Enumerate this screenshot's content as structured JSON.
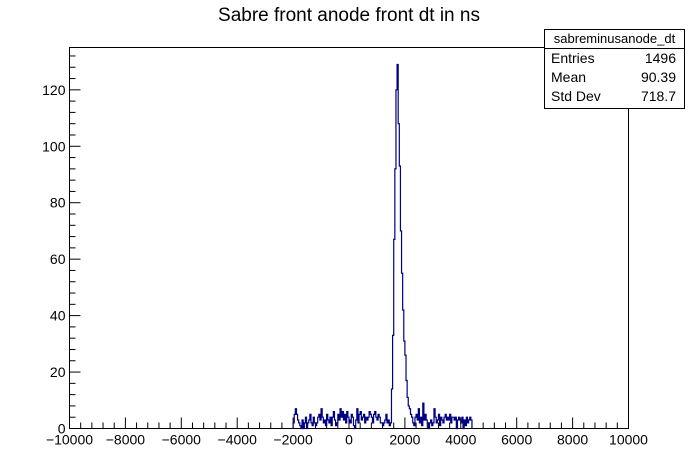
{
  "chart_data": {
    "type": "histogram",
    "title": "Sabre front anode front dt in ns",
    "xlabel": "",
    "ylabel": "",
    "xlim": [
      -10000,
      10000
    ],
    "ylim": [
      0,
      135
    ],
    "x_ticks": [
      -10000,
      -8000,
      -6000,
      -4000,
      -2000,
      0,
      2000,
      4000,
      6000,
      8000,
      10000
    ],
    "x_tick_labels": [
      "−10000",
      "−8000",
      "−6000",
      "−4000",
      "−2000",
      "0",
      "2000",
      "4000",
      "6000",
      "8000",
      "10000"
    ],
    "y_ticks": [
      0,
      20,
      40,
      60,
      80,
      100,
      120
    ],
    "y_tick_labels": [
      "0",
      "20",
      "40",
      "60",
      "80",
      "100",
      "120"
    ],
    "series_color": "#000080",
    "bin_width": 40,
    "bins_start": -2000,
    "bin_values": [
      2,
      5,
      7,
      5,
      3,
      2,
      1,
      0,
      3,
      0,
      2,
      4,
      0,
      2,
      3,
      5,
      2,
      1,
      4,
      2,
      1,
      2,
      4,
      5,
      3,
      7,
      4,
      2,
      3,
      1,
      5,
      3,
      2,
      4,
      1,
      4,
      6,
      3,
      1,
      2,
      5,
      3,
      7,
      4,
      6,
      3,
      5,
      2,
      6,
      4,
      3,
      2,
      5,
      4,
      1,
      0,
      3,
      7,
      2,
      5,
      6,
      3,
      4,
      5,
      2,
      4,
      3,
      4,
      6,
      5,
      4,
      2,
      5,
      6,
      4,
      3,
      5,
      4,
      2,
      2,
      1,
      2,
      3,
      5,
      2,
      3,
      1,
      2,
      14,
      33,
      67,
      92,
      120,
      129,
      108,
      93,
      70,
      55,
      42,
      31,
      26,
      17,
      11,
      8,
      7,
      5,
      4,
      2,
      1,
      4,
      5,
      3,
      7,
      2,
      4,
      1,
      9,
      3,
      5,
      3,
      2,
      0,
      2,
      3,
      1,
      2,
      7,
      4,
      2,
      3,
      5,
      1,
      4,
      3,
      2,
      4,
      5,
      3,
      4,
      3,
      5,
      2,
      4,
      4,
      3,
      4,
      0,
      3,
      4,
      3,
      2,
      4,
      0,
      3,
      1,
      4,
      2,
      3,
      4,
      3
    ],
    "stats": {
      "name": "sabreminusanode_dt",
      "entries_label": "Entries",
      "entries": "1496",
      "mean_label": "Mean",
      "mean": "90.39",
      "stddev_label": "Std Dev",
      "stddev": "718.7"
    }
  }
}
